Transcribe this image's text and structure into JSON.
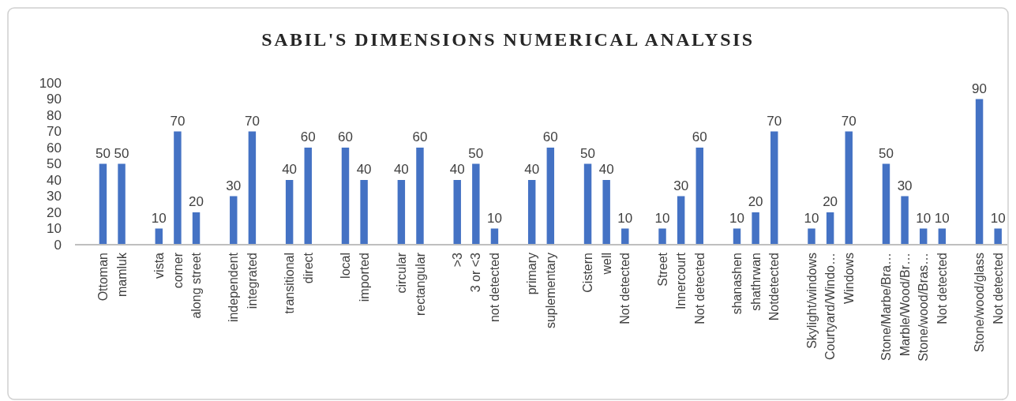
{
  "chart_data": {
    "type": "bar",
    "title": "SABIL'S DIMENSIONS NUMERICAL ANALYSIS",
    "categories": [
      null,
      "Ottoman",
      "mamluk",
      null,
      "vista",
      "corner",
      "along street",
      null,
      "independent",
      "integrated",
      null,
      "transitional",
      "direct",
      null,
      "local",
      "imported",
      null,
      "circular",
      "rectangular",
      null,
      ">3",
      "3 or <3",
      "not detected",
      null,
      "primary",
      "suplementary",
      null,
      "Cistern",
      "well",
      "Not detected",
      null,
      "Street",
      "Innercourt",
      "Not detected",
      null,
      "shanashen",
      "shathrwan",
      "Notdetected",
      null,
      "Skylight/windows",
      "Courtyard/Windo…",
      "Windows",
      null,
      "Stone/Marbe/Bra…",
      "Marble/Wood/Br…",
      "Stone/wood/Bras…",
      "Not detected",
      null,
      "Stone/wood/glass",
      "Not detected"
    ],
    "values": [
      null,
      50,
      50,
      null,
      10,
      70,
      20,
      null,
      30,
      70,
      null,
      40,
      60,
      null,
      60,
      40,
      null,
      40,
      60,
      null,
      40,
      50,
      10,
      null,
      40,
      60,
      null,
      50,
      40,
      10,
      null,
      10,
      30,
      60,
      null,
      10,
      20,
      70,
      null,
      10,
      20,
      70,
      null,
      50,
      30,
      10,
      10,
      null,
      90,
      10
    ],
    "color": "#4472c4",
    "ylim": [
      0,
      100
    ],
    "yticks": [
      0,
      10,
      20,
      30,
      40,
      50,
      60,
      70,
      80,
      90,
      100
    ],
    "data_labels": true
  }
}
